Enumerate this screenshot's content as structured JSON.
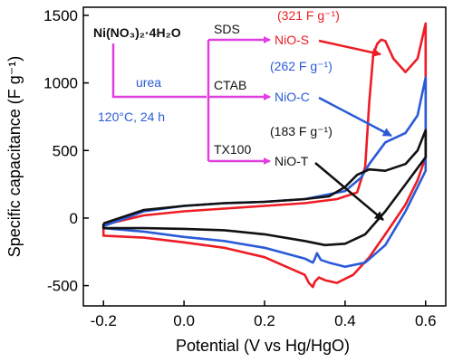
{
  "chart_data": {
    "type": "line",
    "xlabel": "Potential (V vs Hg/HgO)",
    "ylabel": "Specific capacitance (F g⁻¹)",
    "xlim": [
      -0.25,
      0.65
    ],
    "ylim": [
      -650,
      1560
    ],
    "xticks": [
      -0.2,
      0.0,
      0.2,
      0.4,
      0.6
    ],
    "xtick_labels": [
      "-0.2",
      "0.0",
      "0.2",
      "0.4",
      "0.6"
    ],
    "yticks": [
      -500,
      0,
      500,
      1000,
      1500
    ],
    "ytick_labels": [
      "-500",
      "0",
      "500",
      "1000",
      "1500"
    ],
    "grid": false,
    "series": [
      {
        "name": "NiO-S",
        "color": "#ee1c24",
        "x": [
          -0.2,
          -0.1,
          0.0,
          0.1,
          0.2,
          0.3,
          0.38,
          0.43,
          0.45,
          0.46,
          0.47,
          0.48,
          0.49,
          0.5,
          0.52,
          0.55,
          0.58,
          0.6,
          0.6,
          0.58,
          0.55,
          0.5,
          0.46,
          0.42,
          0.38,
          0.35,
          0.335,
          0.325,
          0.32,
          0.31,
          0.3,
          0.2,
          0.1,
          0.0,
          -0.1,
          -0.2
        ],
        "y": [
          -50,
          20,
          50,
          70,
          90,
          110,
          140,
          190,
          380,
          860,
          1210,
          1290,
          1320,
          1310,
          1180,
          1080,
          1180,
          1440,
          450,
          280,
          100,
          -120,
          -290,
          -420,
          -480,
          -460,
          -440,
          -470,
          -510,
          -480,
          -420,
          -290,
          -220,
          -180,
          -145,
          -130
        ]
      },
      {
        "name": "NiO-C",
        "color": "#2a5bd7",
        "x": [
          -0.2,
          -0.1,
          0.0,
          0.1,
          0.2,
          0.3,
          0.4,
          0.44,
          0.46,
          0.5,
          0.55,
          0.58,
          0.6,
          0.6,
          0.55,
          0.5,
          0.45,
          0.4,
          0.36,
          0.34,
          0.33,
          0.325,
          0.32,
          0.3,
          0.2,
          0.1,
          0.0,
          -0.1,
          -0.2
        ],
        "y": [
          -60,
          50,
          90,
          110,
          120,
          140,
          200,
          300,
          400,
          560,
          630,
          760,
          1040,
          350,
          50,
          -200,
          -330,
          -360,
          -330,
          -310,
          -260,
          -300,
          -330,
          -300,
          -220,
          -170,
          -140,
          -100,
          -75
        ]
      },
      {
        "name": "NiO-T",
        "color": "#111111",
        "x": [
          -0.2,
          -0.1,
          0.0,
          0.1,
          0.2,
          0.3,
          0.36,
          0.4,
          0.43,
          0.46,
          0.5,
          0.55,
          0.58,
          0.6,
          0.6,
          0.55,
          0.5,
          0.45,
          0.4,
          0.35,
          0.3,
          0.2,
          0.1,
          0.0,
          -0.1,
          -0.2
        ],
        "y": [
          -40,
          60,
          90,
          110,
          120,
          140,
          160,
          230,
          320,
          360,
          350,
          400,
          500,
          650,
          450,
          250,
          50,
          -120,
          -190,
          -200,
          -170,
          -120,
          -90,
          -80,
          -75,
          -75
        ]
      }
    ],
    "annotations": {
      "precursor": "Ni(NO₃)₂·4H₂O",
      "reagent": "urea",
      "condition": "120°C, 24 h",
      "surfactants": [
        "SDS",
        "CTAB",
        "TX100"
      ],
      "products": [
        "NiO-S",
        "NiO-C",
        "NiO-T"
      ],
      "capacitances": [
        "(321 F g⁻¹)",
        "(262 F g⁻¹)",
        "(183 F g⁻¹)"
      ],
      "flow_color": "#e040e0",
      "text_colors": {
        "red": "#ee1c24",
        "blue": "#2a5bd7",
        "black": "#111111"
      }
    }
  }
}
